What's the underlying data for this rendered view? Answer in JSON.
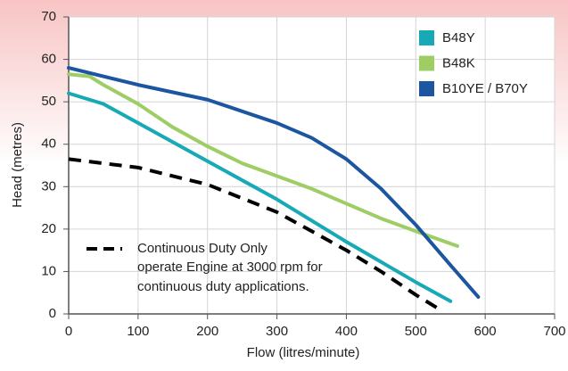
{
  "chart_data": {
    "type": "line",
    "xlabel": "Flow (litres/minute)",
    "ylabel": "Head (metres)",
    "xlim": [
      0,
      700
    ],
    "xticks": [
      0,
      100,
      200,
      300,
      400,
      500,
      600,
      700
    ],
    "ylim": [
      0,
      70
    ],
    "yticks": [
      0,
      10,
      20,
      30,
      40,
      50,
      60,
      70
    ],
    "grid": true,
    "legend": "upper right",
    "series": [
      {
        "name": "B48Y",
        "color": "#17a9b6",
        "x": [
          0,
          50,
          100,
          200,
          300,
          400,
          500,
          550
        ],
        "values": [
          52,
          49.5,
          45,
          36,
          27,
          17,
          7.5,
          3
        ]
      },
      {
        "name": "B48K",
        "color": "#9dcd64",
        "x": [
          0,
          30,
          50,
          100,
          150,
          200,
          250,
          300,
          350,
          400,
          450,
          500,
          560
        ],
        "values": [
          56.5,
          56,
          54,
          49.5,
          44,
          39.5,
          35.5,
          32.5,
          29.5,
          26,
          22.5,
          19.5,
          16
        ]
      },
      {
        "name": "B10YE / B70Y",
        "color": "#1c55a0",
        "x": [
          0,
          100,
          200,
          300,
          350,
          400,
          450,
          500,
          550,
          590
        ],
        "values": [
          58,
          54,
          50.5,
          45,
          41.5,
          36.5,
          29.5,
          21,
          11.5,
          4
        ]
      },
      {
        "name": "Continuous Duty Only",
        "color": "#000000",
        "dashed": true,
        "x": [
          0,
          100,
          200,
          300,
          400,
          450,
          500,
          530
        ],
        "values": [
          36.5,
          34.5,
          30.5,
          24,
          15,
          10,
          4.5,
          1.5
        ]
      }
    ],
    "annotation": [
      "operate Engine at 3000 rpm for",
      "continuous duty applications."
    ]
  }
}
